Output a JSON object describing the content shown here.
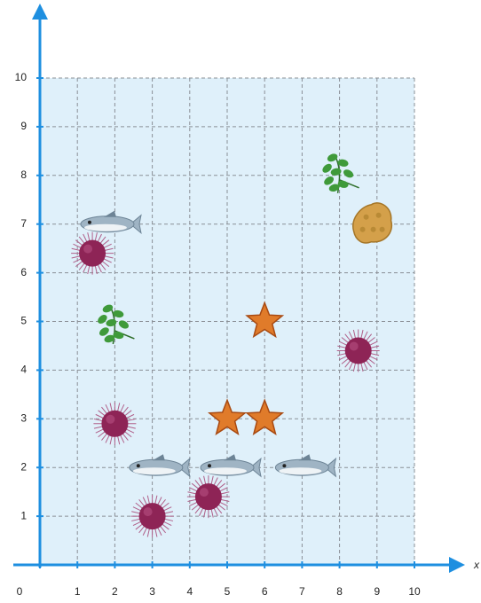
{
  "chart_data": {
    "type": "scatter",
    "xlabel": "x",
    "xlim": [
      0,
      10
    ],
    "ylim": [
      0,
      10
    ],
    "xticks": [
      0,
      1,
      2,
      3,
      4,
      5,
      6,
      7,
      8,
      9,
      10
    ],
    "yticks": [
      1,
      2,
      3,
      4,
      5,
      6,
      7,
      8,
      9,
      10
    ],
    "grid": true,
    "series": [
      {
        "marker": "fish",
        "color": "#9fb4c4",
        "x": [
          1.8,
          3.1,
          5.0,
          7.0
        ],
        "values": [
          7.0,
          2.0,
          2.0,
          2.0
        ]
      },
      {
        "marker": "urchin",
        "color": "#8e2456",
        "x": [
          1.4,
          2.0,
          3.0,
          4.5,
          8.5
        ],
        "values": [
          6.4,
          2.9,
          1.0,
          1.4,
          4.4
        ]
      },
      {
        "marker": "star",
        "color": "#e07b2a",
        "x": [
          6.0,
          5.0,
          6.0
        ],
        "values": [
          5.0,
          3.0,
          3.0
        ]
      },
      {
        "marker": "seaweed",
        "color": "#3f9a3a",
        "x": [
          8.0,
          2.0
        ],
        "values": [
          8.0,
          4.9
        ]
      },
      {
        "marker": "sponge",
        "color": "#d4a04a",
        "x": [
          8.9
        ],
        "values": [
          7.0
        ]
      }
    ]
  }
}
